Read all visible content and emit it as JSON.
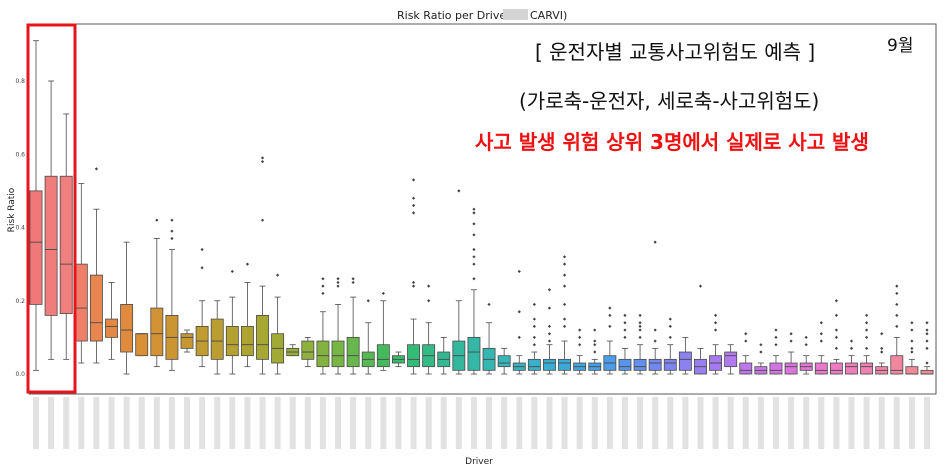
{
  "annotations": {
    "heading": "[ 운전자별 교통사고위험도 예측 ]",
    "axes_note": "(가로축-운전자, 세로축-사고위험도)",
    "highlight_note": "사고 발생 위험 상위 3명에서 실제로 사고 발생",
    "month": "9월"
  },
  "colors": {
    "highlight_box": "#e8141b",
    "annotation_red": "#ee1111"
  },
  "chart_data": {
    "type": "box",
    "title": "Risk Ratio per Driver (     CARVI)",
    "title_left": "Risk Ratio per Driver ",
    "title_right": "CARVI)",
    "xlabel": "Driver",
    "ylabel": "Risk Ratio",
    "ylim": [
      -0.02,
      0.96
    ],
    "yticks": [
      0.0,
      0.2,
      0.4,
      0.6,
      0.8
    ],
    "ytick_labels": [
      "0.0",
      "0.2",
      "0.4",
      "0.6",
      "0.8"
    ],
    "highlighted_drivers": [
      0,
      1,
      2
    ],
    "boxes": [
      {
        "whislo": 0.01,
        "q1": 0.19,
        "med": 0.36,
        "q3": 0.5,
        "whishi": 0.91,
        "fliers": [],
        "color": "#f07878"
      },
      {
        "whislo": 0.04,
        "q1": 0.16,
        "med": 0.34,
        "q3": 0.54,
        "whishi": 0.8,
        "fliers": [],
        "color": "#f07c7c"
      },
      {
        "whislo": 0.04,
        "q1": 0.165,
        "med": 0.3,
        "q3": 0.54,
        "whishi": 0.71,
        "fliers": [],
        "color": "#f08080"
      },
      {
        "whislo": 0.03,
        "q1": 0.09,
        "med": 0.18,
        "q3": 0.3,
        "whishi": 0.52,
        "fliers": [],
        "color": "#ee7f6a"
      },
      {
        "whislo": 0.03,
        "q1": 0.09,
        "med": 0.14,
        "q3": 0.27,
        "whishi": 0.45,
        "fliers": [
          0.56
        ],
        "color": "#e8864f"
      },
      {
        "whislo": 0.04,
        "q1": 0.1,
        "med": 0.13,
        "q3": 0.15,
        "whishi": 0.25,
        "fliers": [],
        "color": "#e48945"
      },
      {
        "whislo": 0.0,
        "q1": 0.06,
        "med": 0.12,
        "q3": 0.19,
        "whishi": 0.36,
        "fliers": [],
        "color": "#e08a3d"
      },
      {
        "whislo": 0.05,
        "q1": 0.05,
        "med": 0.11,
        "q3": 0.11,
        "whishi": 0.11,
        "fliers": [],
        "color": "#d98f35"
      },
      {
        "whislo": 0.02,
        "q1": 0.05,
        "med": 0.11,
        "q3": 0.18,
        "whishi": 0.37,
        "fliers": [
          0.42
        ],
        "color": "#d39234"
      },
      {
        "whislo": 0.01,
        "q1": 0.04,
        "med": 0.1,
        "q3": 0.16,
        "whishi": 0.34,
        "fliers": [
          0.37,
          0.39,
          0.42
        ],
        "color": "#cc9533"
      },
      {
        "whislo": 0.06,
        "q1": 0.07,
        "med": 0.1,
        "q3": 0.11,
        "whishi": 0.12,
        "fliers": [],
        "color": "#c69832"
      },
      {
        "whislo": 0.02,
        "q1": 0.05,
        "med": 0.09,
        "q3": 0.13,
        "whishi": 0.2,
        "fliers": [
          0.29,
          0.34
        ],
        "color": "#c09b31"
      },
      {
        "whislo": 0.0,
        "q1": 0.04,
        "med": 0.09,
        "q3": 0.15,
        "whishi": 0.2,
        "fliers": [],
        "color": "#ba9e31"
      },
      {
        "whislo": 0.0,
        "q1": 0.05,
        "med": 0.08,
        "q3": 0.13,
        "whishi": 0.21,
        "fliers": [
          0.28
        ],
        "color": "#b4a131"
      },
      {
        "whislo": 0.02,
        "q1": 0.05,
        "med": 0.08,
        "q3": 0.13,
        "whishi": 0.25,
        "fliers": [
          0.3
        ],
        "color": "#aea432"
      },
      {
        "whislo": 0.0,
        "q1": 0.04,
        "med": 0.08,
        "q3": 0.16,
        "whishi": 0.24,
        "fliers": [
          0.42,
          0.58,
          0.59
        ],
        "color": "#a7a733"
      },
      {
        "whislo": 0.0,
        "q1": 0.03,
        "med": 0.07,
        "q3": 0.11,
        "whishi": 0.21,
        "fliers": [
          0.27
        ],
        "color": "#a0aa35"
      },
      {
        "whislo": 0.05,
        "q1": 0.05,
        "med": 0.06,
        "q3": 0.07,
        "whishi": 0.08,
        "fliers": [],
        "color": "#98ad38"
      },
      {
        "whislo": 0.02,
        "q1": 0.04,
        "med": 0.06,
        "q3": 0.09,
        "whishi": 0.1,
        "fliers": [],
        "color": "#8fb03c"
      },
      {
        "whislo": 0.0,
        "q1": 0.02,
        "med": 0.05,
        "q3": 0.09,
        "whishi": 0.17,
        "fliers": [
          0.22,
          0.24,
          0.26
        ],
        "color": "#84b240"
      },
      {
        "whislo": 0.0,
        "q1": 0.02,
        "med": 0.05,
        "q3": 0.09,
        "whishi": 0.19,
        "fliers": [
          0.24,
          0.25,
          0.26
        ],
        "color": "#77b545"
      },
      {
        "whislo": 0.0,
        "q1": 0.02,
        "med": 0.05,
        "q3": 0.1,
        "whishi": 0.21,
        "fliers": [
          0.25,
          0.26
        ],
        "color": "#68b74c"
      },
      {
        "whislo": 0.0,
        "q1": 0.02,
        "med": 0.04,
        "q3": 0.06,
        "whishi": 0.14,
        "fliers": [
          0.2
        ],
        "color": "#56b954"
      },
      {
        "whislo": 0.01,
        "q1": 0.02,
        "med": 0.04,
        "q3": 0.08,
        "whishi": 0.2,
        "fliers": [
          0.22
        ],
        "color": "#44ba5d"
      },
      {
        "whislo": 0.02,
        "q1": 0.03,
        "med": 0.04,
        "q3": 0.05,
        "whishi": 0.06,
        "fliers": [],
        "color": "#38bb6a"
      },
      {
        "whislo": 0.0,
        "q1": 0.02,
        "med": 0.04,
        "q3": 0.08,
        "whishi": 0.15,
        "fliers": [
          0.24,
          0.25,
          0.44,
          0.46,
          0.48,
          0.53
        ],
        "color": "#34bb78"
      },
      {
        "whislo": 0.0,
        "q1": 0.02,
        "med": 0.05,
        "q3": 0.08,
        "whishi": 0.14,
        "fliers": [
          0.2,
          0.24
        ],
        "color": "#33ba85"
      },
      {
        "whislo": 0.0,
        "q1": 0.02,
        "med": 0.04,
        "q3": 0.06,
        "whishi": 0.1,
        "fliers": [],
        "color": "#33b992"
      },
      {
        "whislo": 0.0,
        "q1": 0.01,
        "med": 0.05,
        "q3": 0.09,
        "whishi": 0.2,
        "fliers": [
          0.5
        ],
        "color": "#34b89d"
      },
      {
        "whislo": 0.0,
        "q1": 0.01,
        "med": 0.06,
        "q3": 0.1,
        "whishi": 0.23,
        "fliers": [
          0.26,
          0.3,
          0.32,
          0.34,
          0.38,
          0.41,
          0.44,
          0.45
        ],
        "color": "#35b7a7"
      },
      {
        "whislo": 0.0,
        "q1": 0.01,
        "med": 0.04,
        "q3": 0.07,
        "whishi": 0.14,
        "fliers": [
          0.19
        ],
        "color": "#36b6b0"
      },
      {
        "whislo": 0.0,
        "q1": 0.02,
        "med": 0.03,
        "q3": 0.05,
        "whishi": 0.07,
        "fliers": [],
        "color": "#37b5b8"
      },
      {
        "whislo": 0.0,
        "q1": 0.01,
        "med": 0.02,
        "q3": 0.03,
        "whishi": 0.05,
        "fliers": [
          0.1,
          0.17,
          0.28
        ],
        "color": "#38b3c0"
      },
      {
        "whislo": 0.0,
        "q1": 0.01,
        "med": 0.02,
        "q3": 0.04,
        "whishi": 0.06,
        "fliers": [
          0.08,
          0.1,
          0.13,
          0.15,
          0.19
        ],
        "color": "#39b1c8"
      },
      {
        "whislo": 0.0,
        "q1": 0.01,
        "med": 0.03,
        "q3": 0.04,
        "whishi": 0.08,
        "fliers": [
          0.09,
          0.11,
          0.13,
          0.18,
          0.23
        ],
        "color": "#3aaed0"
      },
      {
        "whislo": 0.0,
        "q1": 0.01,
        "med": 0.03,
        "q3": 0.04,
        "whishi": 0.09,
        "fliers": [
          0.13,
          0.15,
          0.19,
          0.24,
          0.27,
          0.3,
          0.32
        ],
        "color": "#3caad7"
      },
      {
        "whislo": 0.0,
        "q1": 0.01,
        "med": 0.02,
        "q3": 0.03,
        "whishi": 0.05,
        "fliers": [
          0.08,
          0.1,
          0.12
        ],
        "color": "#3fa6de"
      },
      {
        "whislo": 0.0,
        "q1": 0.01,
        "med": 0.02,
        "q3": 0.03,
        "whishi": 0.04,
        "fliers": [
          0.06,
          0.08,
          0.09,
          0.12
        ],
        "color": "#45a1e3"
      },
      {
        "whislo": 0.0,
        "q1": 0.01,
        "med": 0.03,
        "q3": 0.05,
        "whishi": 0.09,
        "fliers": [
          0.13,
          0.16,
          0.18
        ],
        "color": "#4e9be7"
      },
      {
        "whislo": 0.0,
        "q1": 0.01,
        "med": 0.02,
        "q3": 0.04,
        "whishi": 0.07,
        "fliers": [
          0.1,
          0.12,
          0.14,
          0.16
        ],
        "color": "#5895ea"
      },
      {
        "whislo": 0.0,
        "q1": 0.01,
        "med": 0.02,
        "q3": 0.04,
        "whishi": 0.08,
        "fliers": [
          0.1,
          0.12,
          0.13,
          0.14,
          0.16
        ],
        "color": "#648fed"
      },
      {
        "whislo": 0.0,
        "q1": 0.01,
        "med": 0.03,
        "q3": 0.04,
        "whishi": 0.07,
        "fliers": [
          0.09,
          0.12,
          0.36
        ],
        "color": "#7189ee"
      },
      {
        "whislo": 0.0,
        "q1": 0.01,
        "med": 0.03,
        "q3": 0.04,
        "whishi": 0.08,
        "fliers": [
          0.1,
          0.13,
          0.15
        ],
        "color": "#7e85ef"
      },
      {
        "whislo": 0.0,
        "q1": 0.01,
        "med": 0.04,
        "q3": 0.06,
        "whishi": 0.1,
        "fliers": [],
        "color": "#8b81ef"
      },
      {
        "whislo": 0.0,
        "q1": 0.0,
        "med": 0.02,
        "q3": 0.04,
        "whishi": 0.07,
        "fliers": [
          0.24
        ],
        "color": "#987eef"
      },
      {
        "whislo": 0.0,
        "q1": 0.01,
        "med": 0.03,
        "q3": 0.05,
        "whishi": 0.08,
        "fliers": [
          0.12,
          0.14,
          0.16
        ],
        "color": "#a57bee"
      },
      {
        "whislo": 0.0,
        "q1": 0.02,
        "med": 0.05,
        "q3": 0.06,
        "whishi": 0.08,
        "fliers": [],
        "color": "#b179ed"
      },
      {
        "whislo": 0.0,
        "q1": 0.0,
        "med": 0.01,
        "q3": 0.03,
        "whishi": 0.05,
        "fliers": [
          0.09,
          0.11
        ],
        "color": "#bd77ea"
      },
      {
        "whislo": 0.0,
        "q1": 0.0,
        "med": 0.01,
        "q3": 0.02,
        "whishi": 0.03,
        "fliers": [
          0.06,
          0.08
        ],
        "color": "#c876e6"
      },
      {
        "whislo": 0.0,
        "q1": 0.0,
        "med": 0.01,
        "q3": 0.03,
        "whishi": 0.05,
        "fliers": [
          0.08,
          0.1,
          0.12
        ],
        "color": "#d275e2"
      },
      {
        "whislo": 0.0,
        "q1": 0.0,
        "med": 0.02,
        "q3": 0.03,
        "whishi": 0.06,
        "fliers": [
          0.09,
          0.11
        ],
        "color": "#db75dc"
      },
      {
        "whislo": 0.0,
        "q1": 0.01,
        "med": 0.02,
        "q3": 0.03,
        "whishi": 0.05,
        "fliers": [
          0.08,
          0.1
        ],
        "color": "#e276d5"
      },
      {
        "whislo": 0.0,
        "q1": 0.0,
        "med": 0.01,
        "q3": 0.03,
        "whishi": 0.05,
        "fliers": [
          0.09,
          0.11,
          0.14
        ],
        "color": "#e878cd"
      },
      {
        "whislo": 0.0,
        "q1": 0.0,
        "med": 0.01,
        "q3": 0.03,
        "whishi": 0.04,
        "fliers": [
          0.07,
          0.1,
          0.12,
          0.16,
          0.2
        ],
        "color": "#ec7bc4"
      },
      {
        "whislo": 0.0,
        "q1": 0.0,
        "med": 0.02,
        "q3": 0.03,
        "whishi": 0.05,
        "fliers": [
          0.07,
          0.09
        ],
        "color": "#ef7eba"
      },
      {
        "whislo": 0.0,
        "q1": 0.0,
        "med": 0.02,
        "q3": 0.03,
        "whishi": 0.05,
        "fliers": [
          0.07,
          0.1,
          0.12,
          0.14,
          0.16
        ],
        "color": "#f081b1"
      },
      {
        "whislo": 0.0,
        "q1": 0.0,
        "med": 0.01,
        "q3": 0.02,
        "whishi": 0.03,
        "fliers": [
          0.06,
          0.07,
          0.11
        ],
        "color": "#f184a7"
      },
      {
        "whislo": 0.0,
        "q1": 0.0,
        "med": 0.01,
        "q3": 0.05,
        "whishi": 0.1,
        "fliers": [
          0.13,
          0.16,
          0.19,
          0.22,
          0.24
        ],
        "color": "#f1879f"
      },
      {
        "whislo": 0.0,
        "q1": 0.0,
        "med": 0.0,
        "q3": 0.02,
        "whishi": 0.04,
        "fliers": [
          0.06,
          0.07,
          0.09,
          0.12,
          0.14
        ],
        "color": "#f08a97"
      },
      {
        "whislo": 0.0,
        "q1": 0.0,
        "med": 0.0,
        "q3": 0.01,
        "whishi": 0.02,
        "fliers": [
          0.03,
          0.07,
          0.09,
          0.11,
          0.12,
          0.14
        ],
        "color": "#ef8d90"
      }
    ]
  }
}
